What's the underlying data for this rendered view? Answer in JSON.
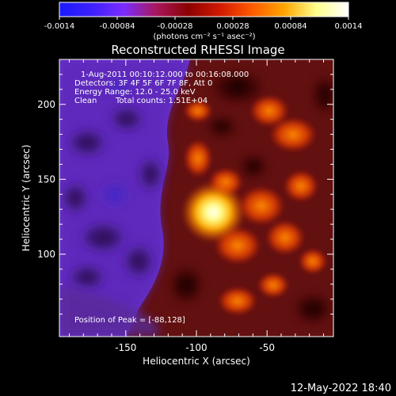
{
  "colorbar": {
    "ticks": [
      "-0.0014",
      "-0.00084",
      "-0.00028",
      "0.00028",
      "0.00084",
      "0.0014"
    ],
    "units": "(photons cm⁻² s⁻¹ asec⁻²)",
    "gradient_colors": [
      "#1a1aff",
      "#3d20ff",
      "#7a2cff",
      "#a81860",
      "#8b0000",
      "#d21a00",
      "#ff5a00",
      "#ffa500",
      "#ffff8c",
      "#ffffff"
    ]
  },
  "title": "Reconstructed RHESSI Image",
  "annotations": {
    "time_range": "1-Aug-2011 00:10:12.000 to 00:16:08.000",
    "detectors": "Detectors: 3F 4F 5F 6F 7F 8F, Att 0",
    "energy": "Energy Range: 12.0 - 25.0 keV",
    "clean": "Clean",
    "counts": "Total counts: 1.51E+04",
    "peak": "Position of Peak = [-88,128]"
  },
  "axes": {
    "xlabel": "Heliocentric X (arcsec)",
    "ylabel": "Heliocentric Y (arcsec)",
    "x_ticks": [
      "-150",
      "-100",
      "-50"
    ],
    "y_ticks": [
      "200",
      "150",
      "100"
    ],
    "x_range": [
      -197,
      -3
    ],
    "y_range": [
      45,
      230
    ]
  },
  "image": {
    "peak_x": -88,
    "peak_y": 128,
    "colors": {
      "violet_dark": "#4a1a8c",
      "violet": "#6a32c8",
      "blue": "#3a2ab8",
      "red": "#a01000",
      "orange": "#ff7a00",
      "yellow": "#ffd24a",
      "white": "#ffffff"
    }
  },
  "footer": {
    "timestamp": "12-May-2022 18:40"
  }
}
